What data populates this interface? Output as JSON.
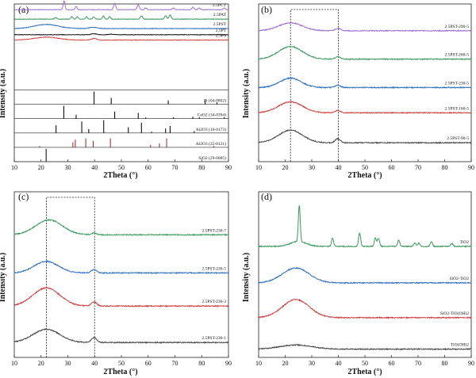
{
  "figure": {
    "panels": [
      {
        "label": "(a)",
        "xlabel": "2Theta (°)",
        "ylabel": "Intensity (a.u.)"
      },
      {
        "label": "(b)",
        "xlabel": "2Theta (°)",
        "ylabel": "Intensity (a.u.)"
      },
      {
        "label": "(c)",
        "xlabel": "2Theta (°)",
        "ylabel": "Intensity (a.u.)"
      },
      {
        "label": "(d)",
        "xlabel": "2Theta (°)",
        "ylabel": "Intensity (a.u.)"
      }
    ]
  },
  "chart_data": [
    {
      "type": "line",
      "panel": "(a)",
      "xlabel": "2Theta (°)",
      "ylabel": "Intensity (a.u.)",
      "xlim": [
        10,
        90
      ],
      "xticks": [
        10,
        20,
        30,
        40,
        50,
        60,
        70,
        80,
        90
      ],
      "series": [
        {
          "name": "2.5PCT",
          "color": "#a070d0",
          "baseline": 0.93,
          "broad": [],
          "peaks": [
            [
              28.6,
              0.11,
              0.35
            ],
            [
              33.1,
              0.04,
              0.35
            ],
            [
              47.5,
              0.08,
              0.4
            ],
            [
              56.3,
              0.06,
              0.4
            ],
            [
              59.1,
              0.02,
              0.4
            ],
            [
              69.4,
              0.02,
              0.4
            ],
            [
              76.7,
              0.03,
              0.4
            ],
            [
              79.1,
              0.02,
              0.4
            ],
            [
              88.4,
              0.02,
              0.4
            ]
          ]
        },
        {
          "name": "2.5PAT",
          "color": "#3a9a5c",
          "baseline": 0.815,
          "broad": [],
          "peaks": [
            [
              25.5,
              0.02,
              0.4
            ],
            [
              31.5,
              0.03,
              0.35
            ],
            [
              33.5,
              0.03,
              0.35
            ],
            [
              37.0,
              0.03,
              0.35
            ],
            [
              39.7,
              0.03,
              0.35
            ],
            [
              43.3,
              0.04,
              0.35
            ],
            [
              45.6,
              0.03,
              0.35
            ],
            [
              57.5,
              0.04,
              0.4
            ],
            [
              66.5,
              0.04,
              0.4
            ],
            [
              68.2,
              0.05,
              0.4
            ]
          ]
        },
        {
          "name": "2.5PST",
          "color": "#2e6fc0",
          "baseline": 0.7,
          "broad": [
            [
              22,
              0.05,
              4.5
            ],
            [
              39.5,
              0.015,
              1.5
            ]
          ],
          "peaks": []
        },
        {
          "name": "2.5PT",
          "color": "#111111",
          "baseline": 0.625,
          "broad": [
            [
              39.8,
              0.012,
              1.0
            ],
            [
              46.3,
              0.006,
              1.0
            ]
          ],
          "peaks": []
        },
        {
          "name": "2.5PS",
          "color": "#d04040",
          "baseline": 0.56,
          "broad": [
            [
              22,
              0.035,
              4.5
            ],
            [
              39.8,
              0.02,
              1.0
            ]
          ],
          "peaks": []
        }
      ],
      "references": [
        {
          "name": "Pt (04-0802)",
          "color": "#111111",
          "sticks": [
            [
              39.8,
              1.0
            ],
            [
              46.2,
              0.5
            ],
            [
              67.5,
              0.3
            ],
            [
              81.3,
              0.3
            ],
            [
              85.7,
              0.15
            ]
          ]
        },
        {
          "name": "CeO2 (34-0394)",
          "color": "#111111",
          "sticks": [
            [
              28.5,
              1.0
            ],
            [
              33.1,
              0.3
            ],
            [
              47.5,
              0.55
            ],
            [
              56.3,
              0.45
            ],
            [
              59.1,
              0.1
            ],
            [
              69.4,
              0.1
            ],
            [
              76.7,
              0.15
            ],
            [
              79.1,
              0.1
            ],
            [
              88.4,
              0.1
            ]
          ]
        },
        {
          "name": "Al2O3 (10-0173)",
          "color": "#111111",
          "sticks": [
            [
              25.6,
              0.6
            ],
            [
              35.2,
              0.9
            ],
            [
              37.8,
              0.3
            ],
            [
              43.4,
              1.0
            ],
            [
              52.6,
              0.45
            ],
            [
              57.5,
              0.8
            ],
            [
              61.3,
              0.1
            ],
            [
              66.5,
              0.35
            ],
            [
              68.2,
              0.55
            ],
            [
              77.2,
              0.15
            ]
          ]
        },
        {
          "name": "Al2O3 (35-0121)",
          "color": "#b03030",
          "sticks": [
            [
              19.5,
              0.1
            ],
            [
              31.9,
              0.4
            ],
            [
              32.8,
              0.6
            ],
            [
              36.7,
              0.7
            ],
            [
              39.5,
              0.5
            ],
            [
              45.9,
              0.7
            ],
            [
              60.9,
              0.2
            ],
            [
              64.2,
              0.3
            ],
            [
              66.9,
              0.7
            ],
            [
              84.5,
              0.1
            ]
          ]
        },
        {
          "name": "SiO2 (29-0085)",
          "color": "#111111",
          "sticks": [
            [
              21.9,
              1.0
            ]
          ]
        }
      ]
    },
    {
      "type": "line",
      "panel": "(b)",
      "xlabel": "2Theta (°)",
      "ylabel": "Intensity (a.u.)",
      "xlim": [
        10,
        90
      ],
      "xticks": [
        10,
        20,
        30,
        40,
        50,
        60,
        70,
        80,
        90
      ],
      "highlight_box": [
        22,
        40
      ],
      "series": [
        {
          "name": "2.5PST-290-5",
          "color": "#a070d0",
          "baseline": 0.83,
          "broad": [
            [
              22,
              0.05,
              4.5
            ],
            [
              39.8,
              0.015,
              1.0
            ]
          ],
          "peaks": []
        },
        {
          "name": "2.5PST-260-5",
          "color": "#3a9a5c",
          "baseline": 0.65,
          "broad": [
            [
              22,
              0.08,
              4.5
            ],
            [
              39.8,
              0.015,
              1.0
            ]
          ],
          "peaks": []
        },
        {
          "name": "2.5PST-230-5",
          "color": "#2e6fc0",
          "baseline": 0.47,
          "broad": [
            [
              22,
              0.06,
              4.0
            ],
            [
              39.8,
              0.015,
              1.0
            ]
          ],
          "peaks": []
        },
        {
          "name": "2.5PST-160-5",
          "color": "#d04040",
          "baseline": 0.31,
          "broad": [
            [
              22,
              0.07,
              4.5
            ],
            [
              39.8,
              0.015,
              1.0
            ]
          ],
          "peaks": []
        },
        {
          "name": "2.5PST-90-5",
          "color": "#444444",
          "baseline": 0.12,
          "broad": [
            [
              22,
              0.08,
              4.5
            ],
            [
              39.8,
              0.025,
              1.0
            ]
          ],
          "peaks": []
        }
      ]
    },
    {
      "type": "line",
      "panel": "(c)",
      "xlabel": "2Theta (°)",
      "ylabel": "Intensity (a.u.)",
      "xlim": [
        10,
        90
      ],
      "xticks": [
        10,
        20,
        30,
        40,
        50,
        60,
        70,
        80,
        90
      ],
      "highlight_box": [
        22,
        40
      ],
      "series": [
        {
          "name": "2.5PST-230-7",
          "color": "#3a9a5c",
          "baseline": 0.74,
          "broad": [
            [
              23,
              0.09,
              5.0
            ],
            [
              39.8,
              0.01,
              1.0
            ]
          ],
          "peaks": []
        },
        {
          "name": "2.5PST-230-5",
          "color": "#2e6fc0",
          "baseline": 0.51,
          "broad": [
            [
              22,
              0.07,
              4.5
            ],
            [
              39.8,
              0.02,
              1.0
            ]
          ],
          "peaks": []
        },
        {
          "name": "2.5PST-230-3",
          "color": "#d04040",
          "baseline": 0.31,
          "broad": [
            [
              22,
              0.11,
              5.0
            ],
            [
              39.8,
              0.025,
              1.0
            ]
          ],
          "peaks": []
        },
        {
          "name": "2.5PST-230-1",
          "color": "#444444",
          "baseline": 0.09,
          "broad": [
            [
              22,
              0.08,
              5.0
            ],
            [
              39.8,
              0.03,
              1.0
            ]
          ],
          "peaks": []
        }
      ]
    },
    {
      "type": "line",
      "panel": "(d)",
      "xlabel": "2Theta (°)",
      "ylabel": "Intensity (a.u.)",
      "xlim": [
        10,
        90
      ],
      "xticks": [
        10,
        20,
        30,
        40,
        50,
        60,
        70,
        80,
        90
      ],
      "series": [
        {
          "name": "TiO2",
          "color": "#3a9a5c",
          "baseline": 0.67,
          "broad": [
            [
              25,
              0.03,
              3.0
            ]
          ],
          "peaks": [
            [
              25.3,
              0.22,
              0.35
            ],
            [
              37.8,
              0.05,
              0.4
            ],
            [
              48.0,
              0.08,
              0.4
            ],
            [
              53.9,
              0.05,
              0.4
            ],
            [
              55.1,
              0.05,
              0.4
            ],
            [
              62.7,
              0.04,
              0.4
            ],
            [
              68.8,
              0.02,
              0.4
            ],
            [
              70.3,
              0.02,
              0.4
            ],
            [
              75.0,
              0.03,
              0.4
            ],
            [
              82.7,
              0.02,
              0.4
            ]
          ]
        },
        {
          "name": "SiO2-TiO2",
          "color": "#2e6fc0",
          "baseline": 0.45,
          "broad": [
            [
              24,
              0.09,
              5.0
            ]
          ],
          "peaks": []
        },
        {
          "name": "SiO2-TiO(OH)2",
          "color": "#d04040",
          "baseline": 0.24,
          "broad": [
            [
              24,
              0.11,
              5.0
            ]
          ],
          "peaks": []
        },
        {
          "name": "TiO(OH)2",
          "color": "#444444",
          "baseline": 0.05,
          "broad": [
            [
              24,
              0.025,
              6.0
            ]
          ],
          "peaks": []
        }
      ]
    }
  ]
}
